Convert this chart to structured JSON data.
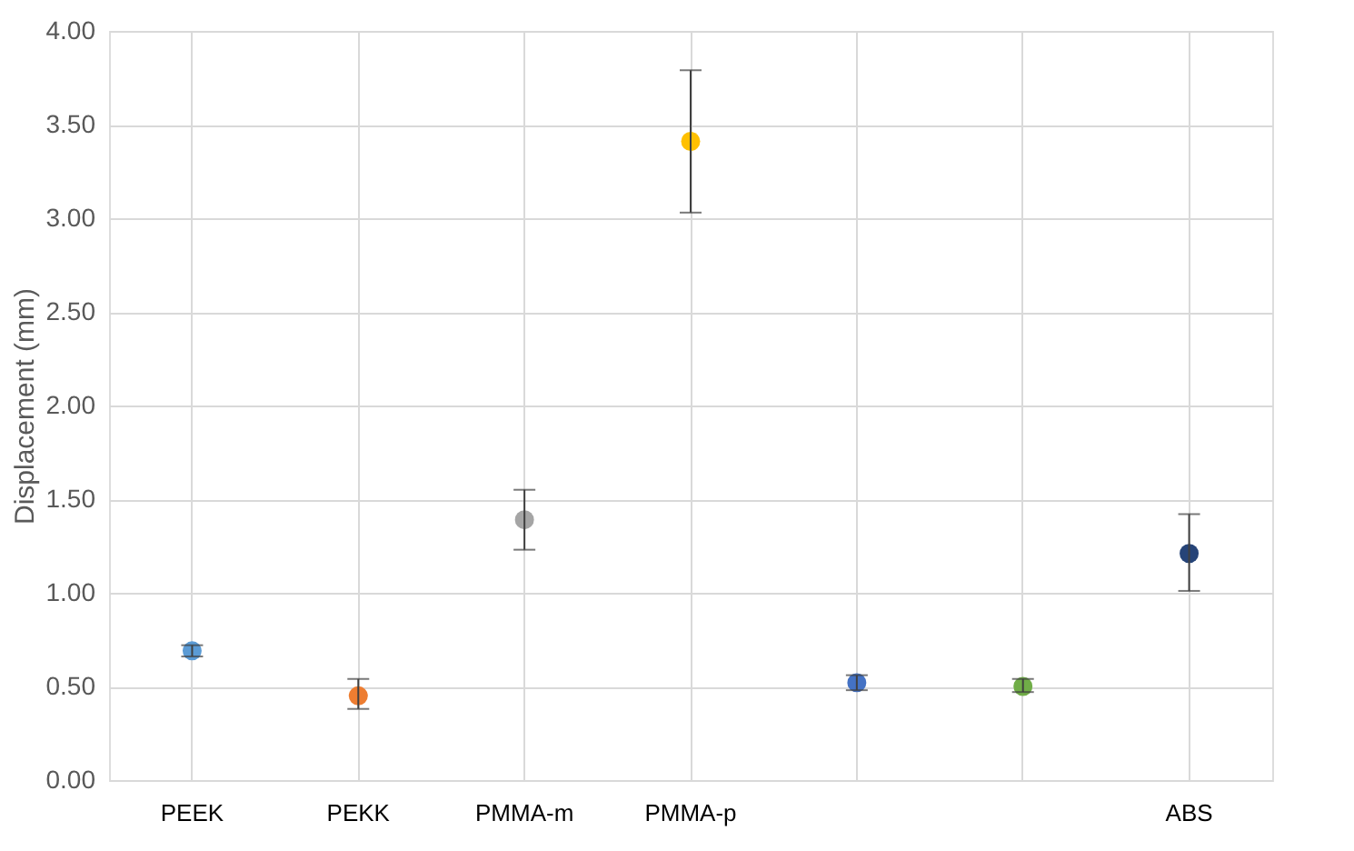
{
  "chart_data": {
    "type": "scatter",
    "ylabel": "Displacement (mm)",
    "categories": [
      "PEEK",
      "PEKK",
      "PMMA-m",
      "PMMA-p",
      null,
      null,
      "ABS"
    ],
    "values": [
      0.69,
      0.45,
      1.39,
      3.41,
      0.52,
      0.5,
      1.21
    ],
    "colors": [
      "#5b9bd5",
      "#ed7d31",
      "#a5a5a5",
      "#ffc000",
      "#4472c4",
      "#70ad47",
      "#264478"
    ],
    "errors": [
      0.03,
      [
        0.38,
        0.54
      ],
      [
        1.23,
        1.55
      ],
      [
        3.03,
        3.79
      ],
      [
        0.48,
        0.56
      ],
      [
        0.47,
        0.54
      ],
      [
        1.01,
        1.42
      ]
    ],
    "ylim": [
      0,
      4
    ],
    "yticks": [
      {
        "value": 0,
        "label": "0.00"
      },
      {
        "value": 0.5,
        "label": "0.50"
      },
      {
        "value": 1,
        "label": "1.00"
      },
      {
        "value": 1.5,
        "label": "1.50"
      },
      {
        "value": 2,
        "label": "2.00"
      },
      {
        "value": 2.5,
        "label": "2.50"
      },
      {
        "value": 3,
        "label": "3.00"
      },
      {
        "value": 3.5,
        "label": "3.50"
      },
      {
        "value": 4,
        "label": "4.00"
      }
    ],
    "grid": true,
    "marker": "circle"
  }
}
